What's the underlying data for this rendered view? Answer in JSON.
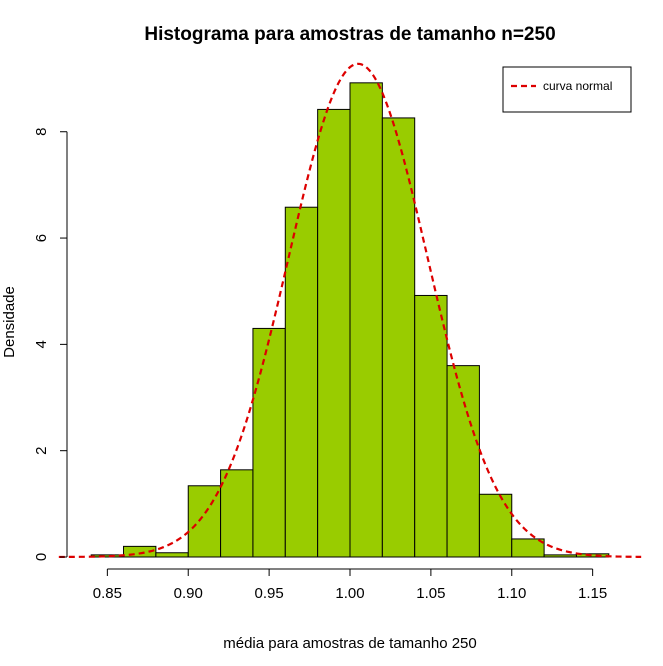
{
  "chart_data": {
    "type": "bar",
    "title": "Histograma para amostras de tamanho n=250",
    "xlabel": "média para amostras de tamanho 250",
    "ylabel": "Densidade",
    "xlim": [
      0.83,
      1.17
    ],
    "ylim": [
      0,
      9.5
    ],
    "x_ticks": [
      0.85,
      0.9,
      0.95,
      1.0,
      1.05,
      1.1,
      1.15
    ],
    "x_tick_labels": [
      "0.85",
      "0.90",
      "0.95",
      "1.00",
      "1.05",
      "1.10",
      "1.15"
    ],
    "y_ticks": [
      0,
      2,
      4,
      6,
      8
    ],
    "y_tick_labels": [
      "0",
      "2",
      "4",
      "6",
      "8"
    ],
    "bin_edges": [
      0.84,
      0.86,
      0.88,
      0.9,
      0.92,
      0.94,
      0.96,
      0.98,
      1.0,
      1.02,
      1.04,
      1.06,
      1.08,
      1.1,
      1.12,
      1.14,
      1.16
    ],
    "densities": [
      0.04,
      0.2,
      0.08,
      1.34,
      1.64,
      4.3,
      6.58,
      8.42,
      8.92,
      8.26,
      4.92,
      3.6,
      1.18,
      0.34,
      0.04,
      0.06
    ],
    "bar_color": "#99CC00",
    "bar_edge_color": "#000000",
    "series": [
      {
        "name": "curva normal",
        "kind": "normal-density",
        "mean": 1.005,
        "sd": 0.043,
        "color": "#DD0000",
        "line_style": "dashed"
      }
    ],
    "legend": {
      "placement": "top-right",
      "entries": [
        "curva normal"
      ]
    },
    "grid": false
  }
}
